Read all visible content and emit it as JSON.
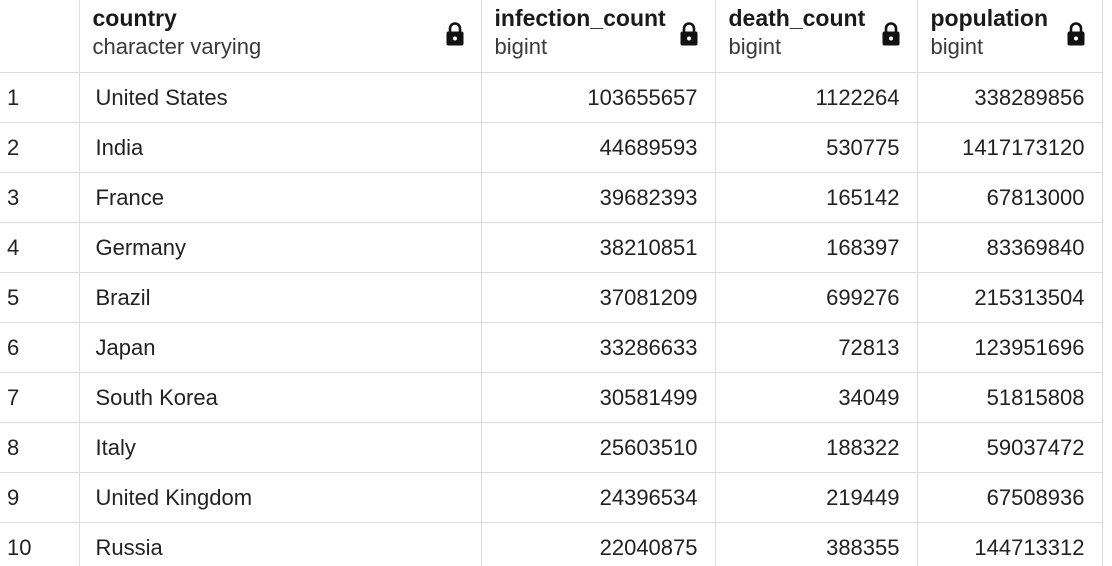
{
  "columns": [
    {
      "name": "country",
      "type": "character varying",
      "icon": "lock-icon"
    },
    {
      "name": "infection_count",
      "type": "bigint",
      "icon": "lock-icon"
    },
    {
      "name": "death_count",
      "type": "bigint",
      "icon": "lock-icon"
    },
    {
      "name": "population",
      "type": "bigint",
      "icon": "lock-icon"
    }
  ],
  "rows": [
    {
      "num": "1",
      "country": "United States",
      "infection_count": "103655657",
      "death_count": "1122264",
      "population": "338289856"
    },
    {
      "num": "2",
      "country": "India",
      "infection_count": "44689593",
      "death_count": "530775",
      "population": "1417173120"
    },
    {
      "num": "3",
      "country": "France",
      "infection_count": "39682393",
      "death_count": "165142",
      "population": "67813000"
    },
    {
      "num": "4",
      "country": "Germany",
      "infection_count": "38210851",
      "death_count": "168397",
      "population": "83369840"
    },
    {
      "num": "5",
      "country": "Brazil",
      "infection_count": "37081209",
      "death_count": "699276",
      "population": "215313504"
    },
    {
      "num": "6",
      "country": "Japan",
      "infection_count": "33286633",
      "death_count": "72813",
      "population": "123951696"
    },
    {
      "num": "7",
      "country": "South Korea",
      "infection_count": "30581499",
      "death_count": "34049",
      "population": "51815808"
    },
    {
      "num": "8",
      "country": "Italy",
      "infection_count": "25603510",
      "death_count": "188322",
      "population": "59037472"
    },
    {
      "num": "9",
      "country": "United Kingdom",
      "infection_count": "24396534",
      "death_count": "219449",
      "population": "67508936"
    },
    {
      "num": "10",
      "country": "Russia",
      "infection_count": "22040875",
      "death_count": "388355",
      "population": "144713312"
    }
  ]
}
